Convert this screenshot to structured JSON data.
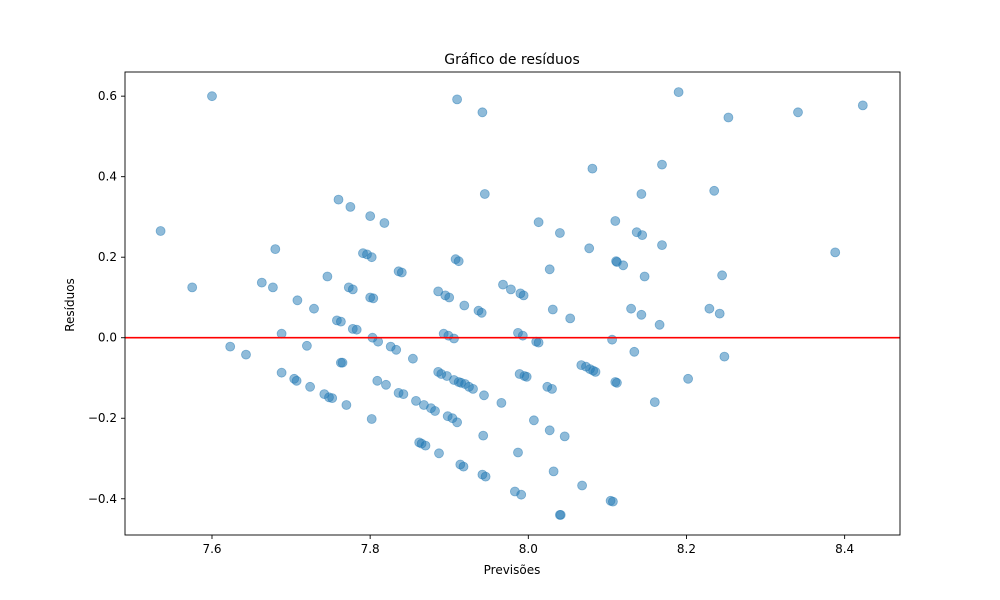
{
  "chart_data": {
    "type": "scatter",
    "title": "Gráfico de resíduos",
    "xlabel": "Previsões",
    "ylabel": "Resíduos",
    "xlim": [
      7.49,
      8.47
    ],
    "ylim": [
      -0.49,
      0.66
    ],
    "xticks": [
      7.6,
      7.8,
      8.0,
      8.2,
      8.4
    ],
    "xtick_labels": [
      "7.6",
      "7.8",
      "8.0",
      "8.2",
      "8.4"
    ],
    "yticks": [
      -0.4,
      -0.2,
      0.0,
      0.2,
      0.4,
      0.6
    ],
    "ytick_labels": [
      "−0.4",
      "−0.2",
      "0.0",
      "0.2",
      "0.4",
      "0.6"
    ],
    "grid": false,
    "reference_line": {
      "y": 0.0,
      "color": "#ff0000"
    },
    "point_color": "#1f77b4",
    "point_alpha": 0.5,
    "points": [
      [
        7.535,
        0.265
      ],
      [
        7.575,
        0.125
      ],
      [
        7.6,
        0.6
      ],
      [
        7.623,
        -0.022
      ],
      [
        7.643,
        -0.042
      ],
      [
        7.663,
        0.137
      ],
      [
        7.677,
        0.125
      ],
      [
        7.68,
        0.22
      ],
      [
        7.688,
        0.01
      ],
      [
        7.688,
        -0.087
      ],
      [
        7.704,
        -0.102
      ],
      [
        7.707,
        -0.107
      ],
      [
        7.708,
        0.093
      ],
      [
        7.72,
        -0.02
      ],
      [
        7.724,
        -0.122
      ],
      [
        7.729,
        0.072
      ],
      [
        7.742,
        -0.14
      ],
      [
        7.746,
        0.152
      ],
      [
        7.748,
        -0.148
      ],
      [
        7.752,
        -0.15
      ],
      [
        7.758,
        0.043
      ],
      [
        7.76,
        0.343
      ],
      [
        7.763,
        0.04
      ],
      [
        7.763,
        -0.062
      ],
      [
        7.765,
        -0.062
      ],
      [
        7.77,
        -0.167
      ],
      [
        7.773,
        0.125
      ],
      [
        7.775,
        0.325
      ],
      [
        7.778,
        0.12
      ],
      [
        7.778,
        0.022
      ],
      [
        7.783,
        0.02
      ],
      [
        7.791,
        0.21
      ],
      [
        7.796,
        0.207
      ],
      [
        7.8,
        0.302
      ],
      [
        7.8,
        0.1
      ],
      [
        7.802,
        0.2
      ],
      [
        7.802,
        -0.202
      ],
      [
        7.803,
        0.0
      ],
      [
        7.804,
        0.098
      ],
      [
        7.809,
        -0.107
      ],
      [
        7.81,
        -0.01
      ],
      [
        7.818,
        0.285
      ],
      [
        7.82,
        -0.117
      ],
      [
        7.826,
        -0.022
      ],
      [
        7.833,
        -0.03
      ],
      [
        7.836,
        0.165
      ],
      [
        7.836,
        -0.137
      ],
      [
        7.84,
        0.162
      ],
      [
        7.842,
        -0.14
      ],
      [
        7.854,
        -0.052
      ],
      [
        7.858,
        -0.157
      ],
      [
        7.862,
        -0.26
      ],
      [
        7.865,
        -0.263
      ],
      [
        7.868,
        -0.167
      ],
      [
        7.87,
        -0.268
      ],
      [
        7.877,
        -0.175
      ],
      [
        7.882,
        -0.182
      ],
      [
        7.886,
        0.115
      ],
      [
        7.886,
        -0.085
      ],
      [
        7.887,
        -0.287
      ],
      [
        7.89,
        -0.09
      ],
      [
        7.893,
        0.01
      ],
      [
        7.895,
        0.105
      ],
      [
        7.897,
        -0.095
      ],
      [
        7.898,
        -0.195
      ],
      [
        7.899,
        0.005
      ],
      [
        7.9,
        0.1
      ],
      [
        7.904,
        -0.2
      ],
      [
        7.906,
        -0.002
      ],
      [
        7.906,
        -0.105
      ],
      [
        7.908,
        0.195
      ],
      [
        7.91,
        0.592
      ],
      [
        7.91,
        -0.21
      ],
      [
        7.912,
        0.19
      ],
      [
        7.912,
        -0.11
      ],
      [
        7.914,
        -0.315
      ],
      [
        7.915,
        -0.112
      ],
      [
        7.918,
        -0.32
      ],
      [
        7.919,
        0.08
      ],
      [
        7.92,
        -0.115
      ],
      [
        7.925,
        -0.122
      ],
      [
        7.93,
        -0.127
      ],
      [
        7.937,
        0.067
      ],
      [
        7.941,
        0.062
      ],
      [
        7.942,
        0.56
      ],
      [
        7.942,
        -0.34
      ],
      [
        7.943,
        -0.243
      ],
      [
        7.944,
        -0.143
      ],
      [
        7.945,
        0.357
      ],
      [
        7.946,
        -0.345
      ],
      [
        7.966,
        -0.162
      ],
      [
        7.968,
        0.132
      ],
      [
        7.978,
        0.12
      ],
      [
        7.983,
        -0.382
      ],
      [
        7.987,
        0.012
      ],
      [
        7.987,
        -0.285
      ],
      [
        7.989,
        -0.09
      ],
      [
        7.99,
        0.11
      ],
      [
        7.991,
        -0.39
      ],
      [
        7.993,
        0.005
      ],
      [
        7.994,
        0.105
      ],
      [
        7.995,
        -0.095
      ],
      [
        7.998,
        -0.097
      ],
      [
        8.007,
        -0.205
      ],
      [
        8.01,
        -0.01
      ],
      [
        8.013,
        -0.012
      ],
      [
        8.013,
        0.287
      ],
      [
        8.024,
        -0.122
      ],
      [
        8.027,
        0.17
      ],
      [
        8.027,
        -0.23
      ],
      [
        8.03,
        -0.127
      ],
      [
        8.031,
        0.07
      ],
      [
        8.032,
        -0.332
      ],
      [
        8.04,
        0.26
      ],
      [
        8.04,
        -0.44
      ],
      [
        8.041,
        -0.44
      ],
      [
        8.046,
        -0.245
      ],
      [
        8.053,
        0.048
      ],
      [
        8.067,
        -0.068
      ],
      [
        8.068,
        -0.367
      ],
      [
        8.073,
        -0.072
      ],
      [
        8.077,
        0.222
      ],
      [
        8.078,
        -0.078
      ],
      [
        8.081,
        0.42
      ],
      [
        8.082,
        -0.082
      ],
      [
        8.085,
        -0.085
      ],
      [
        8.104,
        -0.405
      ],
      [
        8.106,
        -0.005
      ],
      [
        8.107,
        -0.407
      ],
      [
        8.11,
        0.29
      ],
      [
        8.11,
        -0.11
      ],
      [
        8.111,
        0.19
      ],
      [
        8.112,
        -0.112
      ],
      [
        8.112,
        0.188
      ],
      [
        8.12,
        0.18
      ],
      [
        8.13,
        0.072
      ],
      [
        8.134,
        -0.035
      ],
      [
        8.137,
        0.262
      ],
      [
        8.143,
        0.357
      ],
      [
        8.143,
        0.057
      ],
      [
        8.144,
        0.255
      ],
      [
        8.147,
        0.152
      ],
      [
        8.16,
        -0.16
      ],
      [
        8.166,
        0.032
      ],
      [
        8.169,
        0.43
      ],
      [
        8.169,
        0.23
      ],
      [
        8.19,
        0.61
      ],
      [
        8.202,
        -0.102
      ],
      [
        8.229,
        0.072
      ],
      [
        8.235,
        0.365
      ],
      [
        8.242,
        0.06
      ],
      [
        8.245,
        0.155
      ],
      [
        8.248,
        -0.047
      ],
      [
        8.253,
        0.547
      ],
      [
        8.341,
        0.56
      ],
      [
        8.388,
        0.212
      ],
      [
        8.423,
        0.577
      ]
    ]
  }
}
